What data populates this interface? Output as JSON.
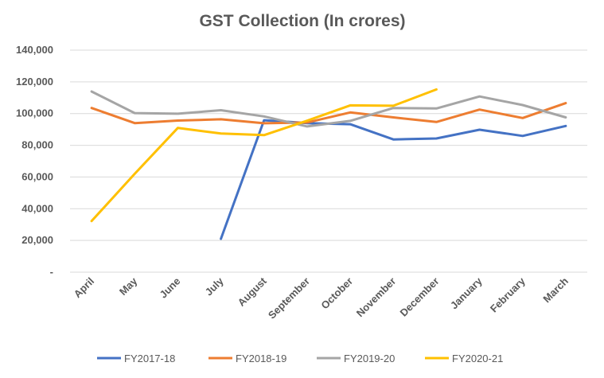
{
  "chart_data": {
    "type": "line",
    "title": "GST Collection (In crores)",
    "xlabel": "",
    "ylabel": "",
    "categories": [
      "April",
      "May",
      "June",
      "July",
      "August",
      "September",
      "October",
      "November",
      "December",
      "January",
      "February",
      "March"
    ],
    "ylim": [
      0,
      140000
    ],
    "yticks": [
      0,
      20000,
      40000,
      60000,
      80000,
      100000,
      120000,
      140000
    ],
    "ytick_labels": [
      "-",
      "20,000",
      "40,000",
      "60,000",
      "80,000",
      "100,000",
      "120,000",
      "140,000"
    ],
    "grid": true,
    "legend_position": "bottom",
    "series": [
      {
        "name": "FY2017-18",
        "color": "#4472c4",
        "values": [
          null,
          null,
          null,
          21000,
          95800,
          94000,
          93300,
          83700,
          84300,
          89800,
          85900,
          92200
        ]
      },
      {
        "name": "FY2018-19",
        "color": "#ed7d31",
        "values": [
          103500,
          94000,
          95600,
          96400,
          93900,
          94400,
          100700,
          97600,
          94700,
          102500,
          97200,
          106600
        ]
      },
      {
        "name": "FY2019-20",
        "color": "#a5a5a5",
        "values": [
          113900,
          100300,
          99900,
          102100,
          98200,
          91900,
          95400,
          103500,
          103200,
          110800,
          105400,
          97600
        ]
      },
      {
        "name": "FY2020-21",
        "color": "#ffc000",
        "values": [
          32200,
          62000,
          90900,
          87400,
          86400,
          95500,
          105200,
          104900,
          115200,
          null,
          null,
          null
        ]
      }
    ]
  }
}
